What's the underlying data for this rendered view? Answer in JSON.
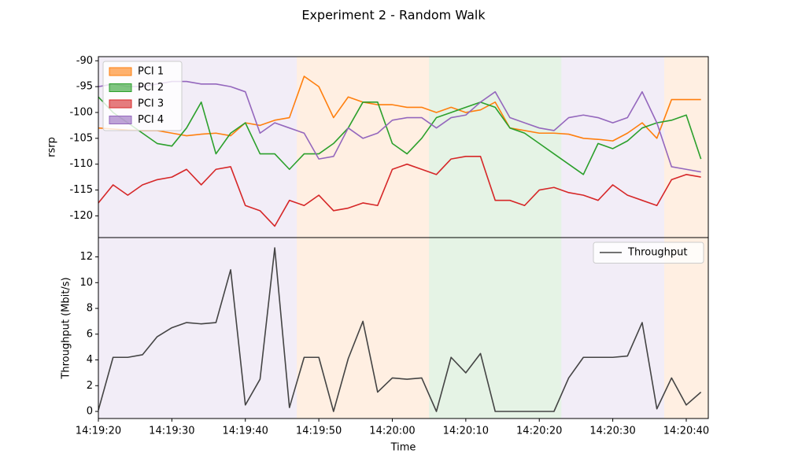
{
  "title": "Experiment 2 - Random Walk",
  "chart_data": [
    {
      "type": "line",
      "ylabel": "rsrp",
      "legend": "upper left",
      "x": [
        "14:19:20",
        "14:19:22",
        "14:19:24",
        "14:19:26",
        "14:19:28",
        "14:19:30",
        "14:19:32",
        "14:19:34",
        "14:19:36",
        "14:19:38",
        "14:19:40",
        "14:19:42",
        "14:19:44",
        "14:19:46",
        "14:19:48",
        "14:19:50",
        "14:19:52",
        "14:19:54",
        "14:19:56",
        "14:19:58",
        "14:20:00",
        "14:20:02",
        "14:20:04",
        "14:20:06",
        "14:20:08",
        "14:20:10",
        "14:20:12",
        "14:20:14",
        "14:20:16",
        "14:20:18",
        "14:20:20",
        "14:20:22",
        "14:20:24",
        "14:20:26",
        "14:20:28",
        "14:20:30",
        "14:20:32",
        "14:20:34",
        "14:20:36",
        "14:20:38",
        "14:20:40",
        "14:20:42"
      ],
      "series": [
        {
          "name": "PCI 1",
          "color": "#ff7f0e",
          "values": [
            -103,
            -103.2,
            -103.4,
            -103.5,
            -103.5,
            -104,
            -104.5,
            -104.2,
            -104,
            -104.5,
            -102,
            -102.5,
            -101.5,
            -101,
            -93,
            -95,
            -101,
            -97,
            -98,
            -98.5,
            -98.5,
            -99,
            -99,
            -100,
            -99,
            -100,
            -99.5,
            -98,
            -103,
            -103.5,
            -104,
            -104,
            -104.2,
            -105,
            -105.2,
            -105.5,
            -104,
            -102,
            -105,
            -97.5,
            -97.5,
            -97.5
          ]
        },
        {
          "name": "PCI 2",
          "color": "#2ca02c",
          "values": [
            -97,
            -100,
            -102,
            -104,
            -106,
            -106.5,
            -103,
            -98,
            -108,
            -104,
            -102,
            -108,
            -108,
            -111,
            -108,
            -108,
            -106,
            -103,
            -98,
            -98,
            -106,
            -108,
            -105,
            -101,
            -100,
            -99,
            -98,
            -99,
            -103,
            -104,
            -106,
            -108,
            -110,
            -112,
            -106,
            -107,
            -105.5,
            -103,
            -102,
            -101.5,
            -100.5,
            -109
          ]
        },
        {
          "name": "PCI 3",
          "color": "#d62728",
          "values": [
            -117.5,
            -114,
            -116,
            -114,
            -113,
            -112.5,
            -111,
            -114,
            -111,
            -110.5,
            -118,
            -119,
            -122,
            -117,
            -118,
            -116,
            -119,
            -118.5,
            -117.5,
            -118,
            -111,
            -110,
            -111,
            -112,
            -109,
            -108.5,
            -108.5,
            -117,
            -117,
            -118,
            -115,
            -114.5,
            -115.5,
            -116,
            -117,
            -114,
            -116,
            -117,
            -118,
            -113,
            -112,
            -112.5
          ]
        },
        {
          "name": "PCI 4",
          "color": "#9467bd",
          "values": [
            -95,
            -94.5,
            -95,
            -95,
            -94.5,
            -94,
            -94,
            -94.5,
            -94.5,
            -95,
            -96,
            -104,
            -102,
            -103,
            -104,
            -109,
            -108.5,
            -103,
            -105,
            -104,
            -101.5,
            -101,
            -101,
            -103,
            -101,
            -100.5,
            -98,
            -96,
            -101,
            -102,
            -103,
            -103.5,
            -101,
            -100.5,
            -101,
            -102,
            -101,
            -96,
            -102,
            -110.5,
            -111,
            -111.5
          ]
        }
      ],
      "xlim": [
        "14:19:20",
        "14:20:43"
      ],
      "ylim": [
        -124.2,
        -89.2
      ],
      "yticks": [
        -120,
        -115,
        -110,
        -105,
        -100,
        -95,
        -90
      ],
      "spans": [
        {
          "start": "14:19:20",
          "end": "14:19:47",
          "color": "#9467bd"
        },
        {
          "start": "14:19:47",
          "end": "14:20:05",
          "color": "#ff7f0e"
        },
        {
          "start": "14:20:05",
          "end": "14:20:23",
          "color": "#2ca02c"
        },
        {
          "start": "14:20:23",
          "end": "14:20:37",
          "color": "#9467bd"
        },
        {
          "start": "14:20:37",
          "end": "14:20:43",
          "color": "#ff7f0e"
        }
      ]
    },
    {
      "type": "line",
      "xlabel": "Time",
      "ylabel": "Throughput (Mbit/s)",
      "legend": "upper right",
      "x": [
        "14:19:20",
        "14:19:22",
        "14:19:24",
        "14:19:26",
        "14:19:28",
        "14:19:30",
        "14:19:32",
        "14:19:34",
        "14:19:36",
        "14:19:38",
        "14:19:40",
        "14:19:42",
        "14:19:44",
        "14:19:46",
        "14:19:48",
        "14:19:50",
        "14:19:52",
        "14:19:54",
        "14:19:56",
        "14:19:58",
        "14:20:00",
        "14:20:02",
        "14:20:04",
        "14:20:06",
        "14:20:08",
        "14:20:10",
        "14:20:12",
        "14:20:14",
        "14:20:16",
        "14:20:18",
        "14:20:20",
        "14:20:22",
        "14:20:24",
        "14:20:26",
        "14:20:28",
        "14:20:30",
        "14:20:32",
        "14:20:34",
        "14:20:36",
        "14:20:38",
        "14:20:40",
        "14:20:42"
      ],
      "series": [
        {
          "name": "Throughput",
          "color": "#444444",
          "values": [
            0.1,
            4.2,
            4.2,
            4.4,
            5.8,
            6.5,
            6.9,
            6.8,
            6.9,
            11.0,
            0.5,
            2.5,
            12.7,
            0.3,
            4.2,
            4.2,
            0,
            4.1,
            7.0,
            1.5,
            2.6,
            2.5,
            2.6,
            0,
            4.2,
            3.0,
            4.5,
            0,
            0,
            0,
            0,
            0,
            2.6,
            4.2,
            4.2,
            4.2,
            4.3,
            6.9,
            0.2,
            2.6,
            0.5,
            1.5
          ]
        }
      ],
      "xlim": [
        "14:19:20",
        "14:20:43"
      ],
      "xticks": [
        "14:19:20",
        "14:19:30",
        "14:19:40",
        "14:19:50",
        "14:20:00",
        "14:20:10",
        "14:20:20",
        "14:20:30",
        "14:20:40"
      ],
      "ylim": [
        -0.55,
        13.5
      ],
      "yticks": [
        0,
        2,
        4,
        6,
        8,
        10,
        12
      ],
      "spans": [
        {
          "start": "14:19:20",
          "end": "14:19:47",
          "color": "#9467bd"
        },
        {
          "start": "14:19:47",
          "end": "14:20:05",
          "color": "#ff7f0e"
        },
        {
          "start": "14:20:05",
          "end": "14:20:23",
          "color": "#2ca02c"
        },
        {
          "start": "14:20:23",
          "end": "14:20:37",
          "color": "#9467bd"
        },
        {
          "start": "14:20:37",
          "end": "14:20:43",
          "color": "#ff7f0e"
        }
      ]
    }
  ]
}
